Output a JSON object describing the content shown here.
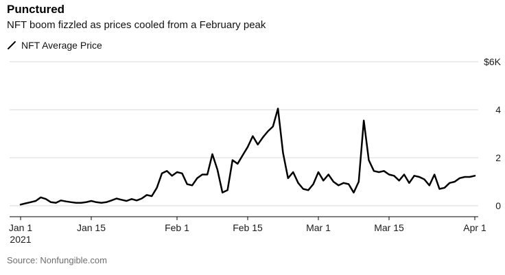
{
  "header": {
    "title": "Punctured",
    "subtitle": "NFT boom fizzled as prices cooled from a February peak"
  },
  "legend": {
    "label": "NFT Average Price"
  },
  "source": "Source: Nonfungible.com",
  "colors": {
    "line": "#000000",
    "grid": "#d9d9d9",
    "axis": "#000000"
  },
  "chart_data": {
    "type": "line",
    "title": "Punctured",
    "subtitle": "NFT boom fizzled as prices cooled from a February peak",
    "series_name": "NFT Average Price",
    "unit": "USD thousands",
    "ylim": [
      0,
      6
    ],
    "grid": true,
    "legend_position": "top-left",
    "y_ticks": [
      {
        "value": 0,
        "label": "0"
      },
      {
        "value": 2,
        "label": "2"
      },
      {
        "value": 4,
        "label": "4"
      },
      {
        "value": 6,
        "label": "$6K"
      }
    ],
    "x_ticks": [
      {
        "index": 0,
        "label": "Jan 1",
        "sublabel": "2021"
      },
      {
        "index": 14,
        "label": "Jan 15"
      },
      {
        "index": 31,
        "label": "Feb 1"
      },
      {
        "index": 45,
        "label": "Feb 15"
      },
      {
        "index": 59,
        "label": "Mar 1"
      },
      {
        "index": 73,
        "label": "Mar 15"
      },
      {
        "index": 90,
        "label": "Apr 1"
      }
    ],
    "x": [
      "2021-01-01",
      "2021-01-02",
      "2021-01-03",
      "2021-01-04",
      "2021-01-05",
      "2021-01-06",
      "2021-01-07",
      "2021-01-08",
      "2021-01-09",
      "2021-01-10",
      "2021-01-11",
      "2021-01-12",
      "2021-01-13",
      "2021-01-14",
      "2021-01-15",
      "2021-01-16",
      "2021-01-17",
      "2021-01-18",
      "2021-01-19",
      "2021-01-20",
      "2021-01-21",
      "2021-01-22",
      "2021-01-23",
      "2021-01-24",
      "2021-01-25",
      "2021-01-26",
      "2021-01-27",
      "2021-01-28",
      "2021-01-29",
      "2021-01-30",
      "2021-01-31",
      "2021-02-01",
      "2021-02-02",
      "2021-02-03",
      "2021-02-04",
      "2021-02-05",
      "2021-02-06",
      "2021-02-07",
      "2021-02-08",
      "2021-02-09",
      "2021-02-10",
      "2021-02-11",
      "2021-02-12",
      "2021-02-13",
      "2021-02-14",
      "2021-02-15",
      "2021-02-16",
      "2021-02-17",
      "2021-02-18",
      "2021-02-19",
      "2021-02-20",
      "2021-02-21",
      "2021-02-22",
      "2021-02-23",
      "2021-02-24",
      "2021-02-25",
      "2021-02-26",
      "2021-02-27",
      "2021-02-28",
      "2021-03-01",
      "2021-03-02",
      "2021-03-03",
      "2021-03-04",
      "2021-03-05",
      "2021-03-06",
      "2021-03-07",
      "2021-03-08",
      "2021-03-09",
      "2021-03-10",
      "2021-03-11",
      "2021-03-12",
      "2021-03-13",
      "2021-03-14",
      "2021-03-15",
      "2021-03-16",
      "2021-03-17",
      "2021-03-18",
      "2021-03-19",
      "2021-03-20",
      "2021-03-21",
      "2021-03-22",
      "2021-03-23",
      "2021-03-24",
      "2021-03-25",
      "2021-03-26",
      "2021-03-27",
      "2021-03-28",
      "2021-03-29",
      "2021-03-30",
      "2021-03-31",
      "2021-04-01"
    ],
    "values": [
      0.05,
      0.1,
      0.15,
      0.2,
      0.35,
      0.28,
      0.15,
      0.12,
      0.22,
      0.18,
      0.15,
      0.12,
      0.12,
      0.15,
      0.2,
      0.15,
      0.12,
      0.15,
      0.22,
      0.3,
      0.25,
      0.2,
      0.28,
      0.22,
      0.3,
      0.45,
      0.4,
      0.75,
      1.35,
      1.45,
      1.25,
      1.4,
      1.35,
      0.9,
      0.85,
      1.15,
      1.3,
      1.3,
      2.15,
      1.5,
      0.55,
      0.65,
      1.9,
      1.75,
      2.1,
      2.45,
      2.9,
      2.55,
      2.85,
      3.1,
      3.3,
      4.05,
      2.2,
      1.15,
      1.4,
      0.95,
      0.7,
      0.65,
      0.9,
      1.4,
      1.05,
      1.3,
      1.0,
      0.85,
      0.95,
      0.9,
      0.55,
      1.0,
      3.55,
      1.9,
      1.45,
      1.4,
      1.45,
      1.3,
      1.25,
      1.05,
      1.3,
      0.95,
      1.25,
      1.2,
      1.1,
      0.85,
      1.3,
      0.7,
      0.75,
      0.95,
      1.0,
      1.15,
      1.2,
      1.2,
      1.25
    ],
    "line_color": "#000000"
  }
}
